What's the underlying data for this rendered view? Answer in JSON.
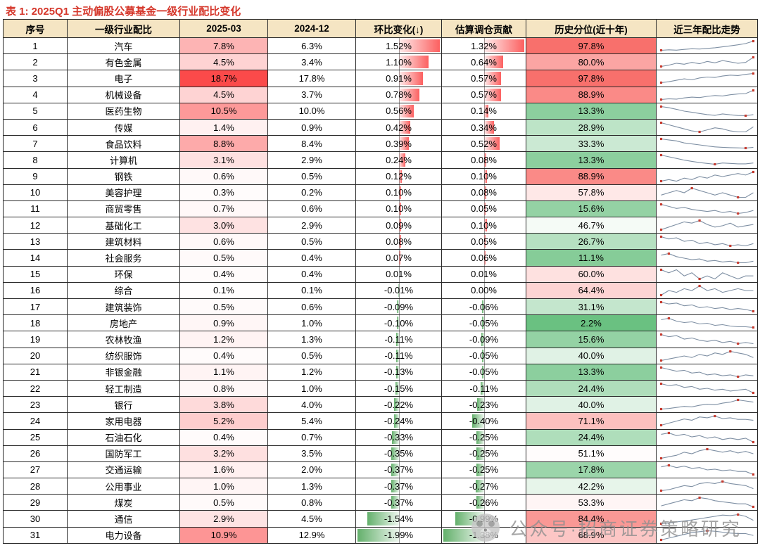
{
  "colors": {
    "title_red": "#d5372b",
    "header_bg": "#f5e5c3",
    "heat_red_max": "#fb4a4a",
    "scale_red": "#f86965",
    "scale_green": "#63be7b",
    "bar_positive": "#fb4a4a",
    "bar_negative": "#4ea557",
    "spark_line": "#7e8fa3",
    "spark_marker": "#c63b2f"
  },
  "watermark": {
    "text": "公众号·招商证券策略研究",
    "icon": "panda-logo-icon"
  },
  "chart_data": {
    "type": "table",
    "title": "表 1: 2025Q1 主动偏股公募基金一级行业配比变化",
    "columns": [
      "序号",
      "一级行业配比",
      "2025-03",
      "2024-12",
      "环比变化(↓)",
      "估算调仓贡献",
      "历史分位(近十年)",
      "近三年配比走势"
    ],
    "heat_scale": {
      "alloc_max": 18.7,
      "mom_pos_max": 1.52,
      "mom_neg_max": 1.99,
      "contrib_pos_max": 1.32,
      "contrib_neg_max": 1.38,
      "percentile_mid": 50
    },
    "rows": [
      {
        "seq": "1",
        "industry": "汽车",
        "alloc_2025_03": "7.8%",
        "alloc_2024_12": "6.3%",
        "mom_change": "1.52%",
        "contribution": "1.32%",
        "percentile": "97.8%",
        "trend": [
          2,
          2.3,
          2.1,
          2.6,
          3,
          2.8,
          3.2,
          3.6,
          4.2,
          4.8,
          5.5,
          6.3,
          7.8
        ]
      },
      {
        "seq": "2",
        "industry": "有色金属",
        "alloc_2025_03": "4.5%",
        "alloc_2024_12": "3.4%",
        "mom_change": "1.10%",
        "contribution": "0.64%",
        "percentile": "80.0%",
        "trend": [
          2.5,
          2.8,
          3.2,
          3,
          3.4,
          3.1,
          3.6,
          3.3,
          3.8,
          3.5,
          3.2,
          3.4,
          4.5
        ]
      },
      {
        "seq": "3",
        "industry": "电子",
        "alloc_2025_03": "18.7%",
        "alloc_2024_12": "17.8%",
        "mom_change": "0.91%",
        "contribution": "0.57%",
        "percentile": "97.8%",
        "trend": [
          9,
          10,
          11.5,
          13,
          12,
          14,
          15,
          14.5,
          16,
          17,
          16.5,
          17.8,
          18.7
        ]
      },
      {
        "seq": "4",
        "industry": "机械设备",
        "alloc_2025_03": "4.5%",
        "alloc_2024_12": "3.7%",
        "mom_change": "0.78%",
        "contribution": "0.57%",
        "percentile": "88.9%",
        "trend": [
          2.2,
          2.4,
          2.3,
          2.6,
          2.8,
          2.7,
          3,
          3.2,
          3.1,
          3.4,
          3.6,
          3.7,
          4.5
        ]
      },
      {
        "seq": "5",
        "industry": "医药生物",
        "alloc_2025_03": "10.5%",
        "alloc_2024_12": "10.0%",
        "mom_change": "0.56%",
        "contribution": "0.14%",
        "percentile": "13.3%",
        "trend": [
          14,
          13.5,
          12.8,
          12,
          11.5,
          11,
          10.5,
          10.2,
          10.8,
          10.4,
          10.1,
          10,
          10.5
        ]
      },
      {
        "seq": "6",
        "industry": "传媒",
        "alloc_2025_03": "1.4%",
        "alloc_2024_12": "0.9%",
        "mom_change": "0.42%",
        "contribution": "0.34%",
        "percentile": "28.9%",
        "trend": [
          1.8,
          1.6,
          1.4,
          1.2,
          1,
          0.9,
          1.1,
          1.3,
          1.2,
          1,
          0.9,
          0.9,
          1.4
        ]
      },
      {
        "seq": "7",
        "industry": "食品饮料",
        "alloc_2025_03": "8.8%",
        "alloc_2024_12": "8.4%",
        "mom_change": "0.39%",
        "contribution": "0.52%",
        "percentile": "33.3%",
        "trend": [
          13,
          12.5,
          12,
          11,
          10.5,
          10,
          9.5,
          9,
          8.8,
          8.6,
          8.5,
          8.4,
          8.8
        ]
      },
      {
        "seq": "8",
        "industry": "计算机",
        "alloc_2025_03": "3.1%",
        "alloc_2024_12": "2.9%",
        "mom_change": "0.24%",
        "contribution": "0.08%",
        "percentile": "13.3%",
        "trend": [
          5,
          4.6,
          4.2,
          3.8,
          3.5,
          3.2,
          3,
          2.8,
          3.1,
          3,
          2.9,
          2.9,
          3.1
        ]
      },
      {
        "seq": "9",
        "industry": "钢铁",
        "alloc_2025_03": "0.6%",
        "alloc_2024_12": "0.5%",
        "mom_change": "0.12%",
        "contribution": "0.10%",
        "percentile": "88.9%",
        "trend": [
          0.3,
          0.35,
          0.3,
          0.4,
          0.35,
          0.45,
          0.4,
          0.5,
          0.45,
          0.5,
          0.55,
          0.5,
          0.6
        ]
      },
      {
        "seq": "10",
        "industry": "美容护理",
        "alloc_2025_03": "0.3%",
        "alloc_2024_12": "0.2%",
        "mom_change": "0.10%",
        "contribution": "0.08%",
        "percentile": "57.8%",
        "trend": [
          0.25,
          0.3,
          0.35,
          0.3,
          0.4,
          0.35,
          0.3,
          0.25,
          0.3,
          0.25,
          0.2,
          0.2,
          0.3
        ]
      },
      {
        "seq": "11",
        "industry": "商贸零售",
        "alloc_2025_03": "0.7%",
        "alloc_2024_12": "0.6%",
        "mom_change": "0.10%",
        "contribution": "0.05%",
        "percentile": "15.6%",
        "trend": [
          1,
          0.9,
          0.8,
          0.85,
          0.75,
          0.7,
          0.65,
          0.7,
          0.6,
          0.65,
          0.55,
          0.6,
          0.7
        ]
      },
      {
        "seq": "12",
        "industry": "基础化工",
        "alloc_2025_03": "3.0%",
        "alloc_2024_12": "2.9%",
        "mom_change": "0.09%",
        "contribution": "0.10%",
        "percentile": "46.7%",
        "trend": [
          2.6,
          2.8,
          3,
          3.2,
          3.1,
          3.3,
          3,
          2.8,
          2.9,
          3.1,
          2.8,
          2.9,
          3
        ]
      },
      {
        "seq": "13",
        "industry": "建筑材料",
        "alloc_2025_03": "0.6%",
        "alloc_2024_12": "0.5%",
        "mom_change": "0.08%",
        "contribution": "0.05%",
        "percentile": "26.7%",
        "trend": [
          0.9,
          0.8,
          0.85,
          0.7,
          0.75,
          0.6,
          0.65,
          0.55,
          0.6,
          0.5,
          0.55,
          0.5,
          0.6
        ]
      },
      {
        "seq": "14",
        "industry": "社会服务",
        "alloc_2025_03": "0.5%",
        "alloc_2024_12": "0.4%",
        "mom_change": "0.07%",
        "contribution": "0.06%",
        "percentile": "11.1%",
        "trend": [
          0.9,
          1,
          0.8,
          0.7,
          0.6,
          0.65,
          0.5,
          0.55,
          0.45,
          0.5,
          0.4,
          0.4,
          0.5
        ]
      },
      {
        "seq": "15",
        "industry": "环保",
        "alloc_2025_03": "0.4%",
        "alloc_2024_12": "0.4%",
        "mom_change": "0.01%",
        "contribution": "0.01%",
        "percentile": "60.0%",
        "trend": [
          0.5,
          0.45,
          0.5,
          0.4,
          0.45,
          0.35,
          0.4,
          0.35,
          0.45,
          0.4,
          0.35,
          0.4,
          0.4
        ]
      },
      {
        "seq": "16",
        "industry": "综合",
        "alloc_2025_03": "0.1%",
        "alloc_2024_12": "0.1%",
        "mom_change": "-0.01%",
        "contribution": "0.00%",
        "percentile": "64.4%",
        "trend": [
          0.05,
          0.1,
          0.08,
          0.12,
          0.1,
          0.15,
          0.1,
          0.12,
          0.08,
          0.1,
          0.12,
          0.1,
          0.1
        ]
      },
      {
        "seq": "17",
        "industry": "建筑装饰",
        "alloc_2025_03": "0.5%",
        "alloc_2024_12": "0.6%",
        "mom_change": "-0.09%",
        "contribution": "-0.06%",
        "percentile": "31.1%",
        "trend": [
          1,
          0.9,
          0.95,
          0.8,
          0.85,
          0.7,
          0.75,
          0.65,
          0.7,
          0.6,
          0.65,
          0.6,
          0.5
        ]
      },
      {
        "seq": "18",
        "industry": "房地产",
        "alloc_2025_03": "0.9%",
        "alloc_2024_12": "1.0%",
        "mom_change": "-0.10%",
        "contribution": "-0.05%",
        "percentile": "2.2%",
        "trend": [
          2,
          2.2,
          1.8,
          1.6,
          1.7,
          1.4,
          1.5,
          1.2,
          1.3,
          1.1,
          1,
          1,
          0.9
        ]
      },
      {
        "seq": "19",
        "industry": "农林牧渔",
        "alloc_2025_03": "1.2%",
        "alloc_2024_12": "1.3%",
        "mom_change": "-0.11%",
        "contribution": "-0.09%",
        "percentile": "15.6%",
        "trend": [
          2,
          1.8,
          1.9,
          1.6,
          1.7,
          1.5,
          1.4,
          1.5,
          1.3,
          1.4,
          1.2,
          1.3,
          1.2
        ]
      },
      {
        "seq": "20",
        "industry": "纺织服饰",
        "alloc_2025_03": "0.4%",
        "alloc_2024_12": "0.5%",
        "mom_change": "-0.11%",
        "contribution": "-0.05%",
        "percentile": "40.0%",
        "trend": [
          0.3,
          0.35,
          0.4,
          0.45,
          0.4,
          0.5,
          0.45,
          0.55,
          0.5,
          0.6,
          0.55,
          0.5,
          0.4
        ]
      },
      {
        "seq": "21",
        "industry": "非银金融",
        "alloc_2025_03": "1.1%",
        "alloc_2024_12": "1.2%",
        "mom_change": "-0.13%",
        "contribution": "-0.05%",
        "percentile": "13.3%",
        "trend": [
          2,
          1.8,
          1.6,
          1.7,
          1.4,
          1.5,
          1.2,
          1.3,
          1.1,
          1.2,
          1,
          1.2,
          1.1
        ]
      },
      {
        "seq": "22",
        "industry": "轻工制造",
        "alloc_2025_03": "0.8%",
        "alloc_2024_12": "1.0%",
        "mom_change": "-0.15%",
        "contribution": "-0.11%",
        "percentile": "24.4%",
        "trend": [
          1.3,
          1.2,
          1.25,
          1.1,
          1.15,
          1,
          1.05,
          0.95,
          1,
          0.9,
          0.95,
          1,
          0.8
        ]
      },
      {
        "seq": "23",
        "industry": "银行",
        "alloc_2025_03": "3.8%",
        "alloc_2024_12": "4.0%",
        "mom_change": "-0.22%",
        "contribution": "-0.23%",
        "percentile": "40.0%",
        "trend": [
          2.5,
          2.6,
          2.8,
          3,
          2.9,
          3.2,
          3.4,
          3.3,
          3.6,
          3.8,
          4.2,
          4,
          3.8
        ]
      },
      {
        "seq": "24",
        "industry": "家用电器",
        "alloc_2025_03": "5.2%",
        "alloc_2024_12": "5.4%",
        "mom_change": "-0.24%",
        "contribution": "-0.40%",
        "percentile": "71.1%",
        "trend": [
          4,
          4.5,
          5,
          5.5,
          5.2,
          6,
          5.8,
          6.2,
          5.6,
          5.8,
          5.4,
          5.4,
          5.2
        ]
      },
      {
        "seq": "25",
        "industry": "石油石化",
        "alloc_2025_03": "0.4%",
        "alloc_2024_12": "0.7%",
        "mom_change": "-0.33%",
        "contribution": "-0.25%",
        "percentile": "24.4%",
        "trend": [
          1,
          1.1,
          0.9,
          1,
          0.8,
          0.9,
          0.7,
          0.8,
          0.6,
          0.7,
          0.6,
          0.7,
          0.4
        ]
      },
      {
        "seq": "26",
        "industry": "国防军工",
        "alloc_2025_03": "3.2%",
        "alloc_2024_12": "3.5%",
        "mom_change": "-0.35%",
        "contribution": "-0.25%",
        "percentile": "51.1%",
        "trend": [
          2.6,
          2.8,
          3,
          3.4,
          3.2,
          3.6,
          3.8,
          3.6,
          3.4,
          3.6,
          3.3,
          3.5,
          3.2
        ]
      },
      {
        "seq": "27",
        "industry": "交通运输",
        "alloc_2025_03": "1.6%",
        "alloc_2024_12": "2.0%",
        "mom_change": "-0.37%",
        "contribution": "-0.25%",
        "percentile": "17.8%",
        "trend": [
          2.6,
          2.8,
          2.5,
          2.7,
          2.4,
          2.5,
          2.2,
          2.3,
          2.1,
          2.2,
          2,
          2,
          1.6
        ]
      },
      {
        "seq": "28",
        "industry": "公用事业",
        "alloc_2025_03": "1.0%",
        "alloc_2024_12": "1.3%",
        "mom_change": "-0.37%",
        "contribution": "-0.27%",
        "percentile": "42.2%",
        "trend": [
          0.8,
          0.9,
          1.1,
          1.3,
          1.2,
          1.5,
          1.6,
          1.5,
          1.7,
          1.5,
          1.4,
          1.3,
          1
        ]
      },
      {
        "seq": "29",
        "industry": "煤炭",
        "alloc_2025_03": "0.5%",
        "alloc_2024_12": "0.8%",
        "mom_change": "-0.37%",
        "contribution": "-0.26%",
        "percentile": "53.3%",
        "trend": [
          0.6,
          0.8,
          1,
          1.2,
          1.1,
          1.4,
          1.3,
          1.1,
          1,
          0.9,
          0.8,
          0.8,
          0.5
        ]
      },
      {
        "seq": "30",
        "industry": "通信",
        "alloc_2025_03": "2.9%",
        "alloc_2024_12": "4.5%",
        "mom_change": "-1.54%",
        "contribution": "-0.99%",
        "percentile": "84.4%",
        "trend": [
          1.5,
          1.8,
          2.2,
          2.6,
          3,
          3.5,
          4,
          4.5,
          5,
          4.8,
          5.2,
          4.5,
          2.9
        ]
      },
      {
        "seq": "31",
        "industry": "电力设备",
        "alloc_2025_03": "10.9%",
        "alloc_2024_12": "12.9%",
        "mom_change": "-1.99%",
        "contribution": "-1.38%",
        "percentile": "68.9%",
        "trend": [
          6,
          8,
          10,
          12,
          14,
          15,
          16,
          15.5,
          14.5,
          13.5,
          13,
          12.9,
          10.9
        ]
      }
    ]
  }
}
